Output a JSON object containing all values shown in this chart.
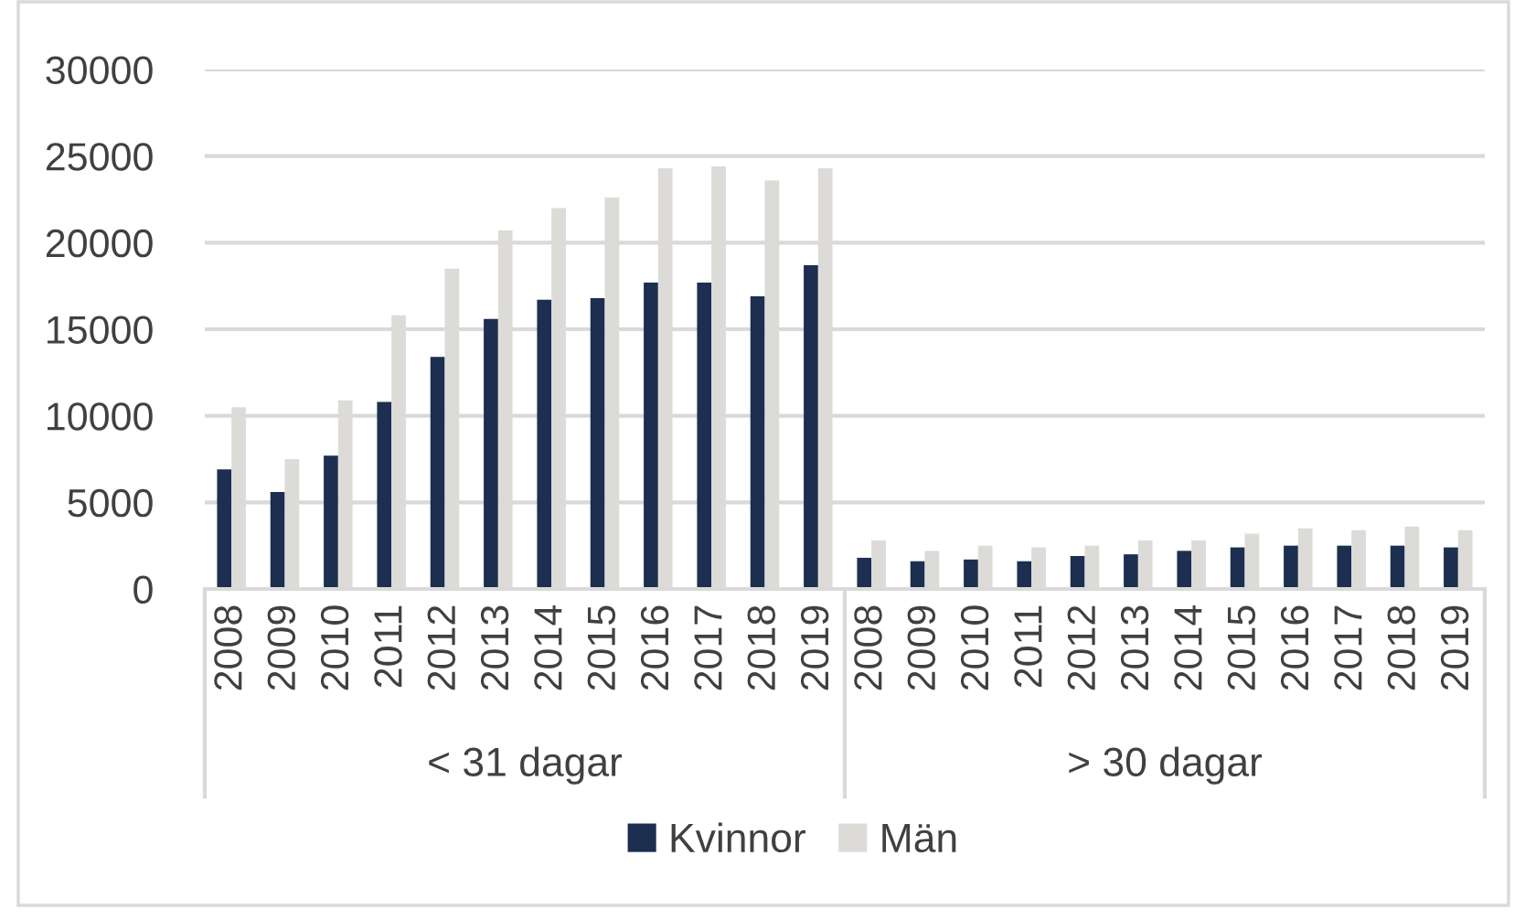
{
  "chart_data": {
    "type": "bar",
    "categories": [
      "2008",
      "2009",
      "2010",
      "2011",
      "2012",
      "2013",
      "2014",
      "2015",
      "2016",
      "2017",
      "2018",
      "2019",
      "2008",
      "2009",
      "2010",
      "2011",
      "2012",
      "2013",
      "2014",
      "2015",
      "2016",
      "2017",
      "2018",
      "2019"
    ],
    "series": [
      {
        "name": "Kvinnor",
        "color": "#1c2f50",
        "values": [
          6900,
          5600,
          7700,
          10800,
          13400,
          15600,
          16700,
          16800,
          17700,
          17700,
          16900,
          18700,
          1800,
          1600,
          1700,
          1600,
          1900,
          2000,
          2200,
          2400,
          2500,
          2500,
          2500,
          2400
        ]
      },
      {
        "name": "Män",
        "color": "#dcdbd8",
        "values": [
          10500,
          7500,
          10900,
          15800,
          18500,
          20700,
          22000,
          22600,
          24300,
          24400,
          23600,
          24300,
          2800,
          2200,
          2500,
          2400,
          2500,
          2800,
          2800,
          3200,
          3500,
          3400,
          3600,
          3400
        ]
      }
    ],
    "ylim": [
      0,
      30000
    ],
    "yticks": [
      0,
      5000,
      10000,
      15000,
      20000,
      25000,
      30000
    ],
    "grid": "y",
    "legend": "bottom",
    "annotations": [
      "< 31 dagar",
      "> 30 dagar"
    ]
  }
}
